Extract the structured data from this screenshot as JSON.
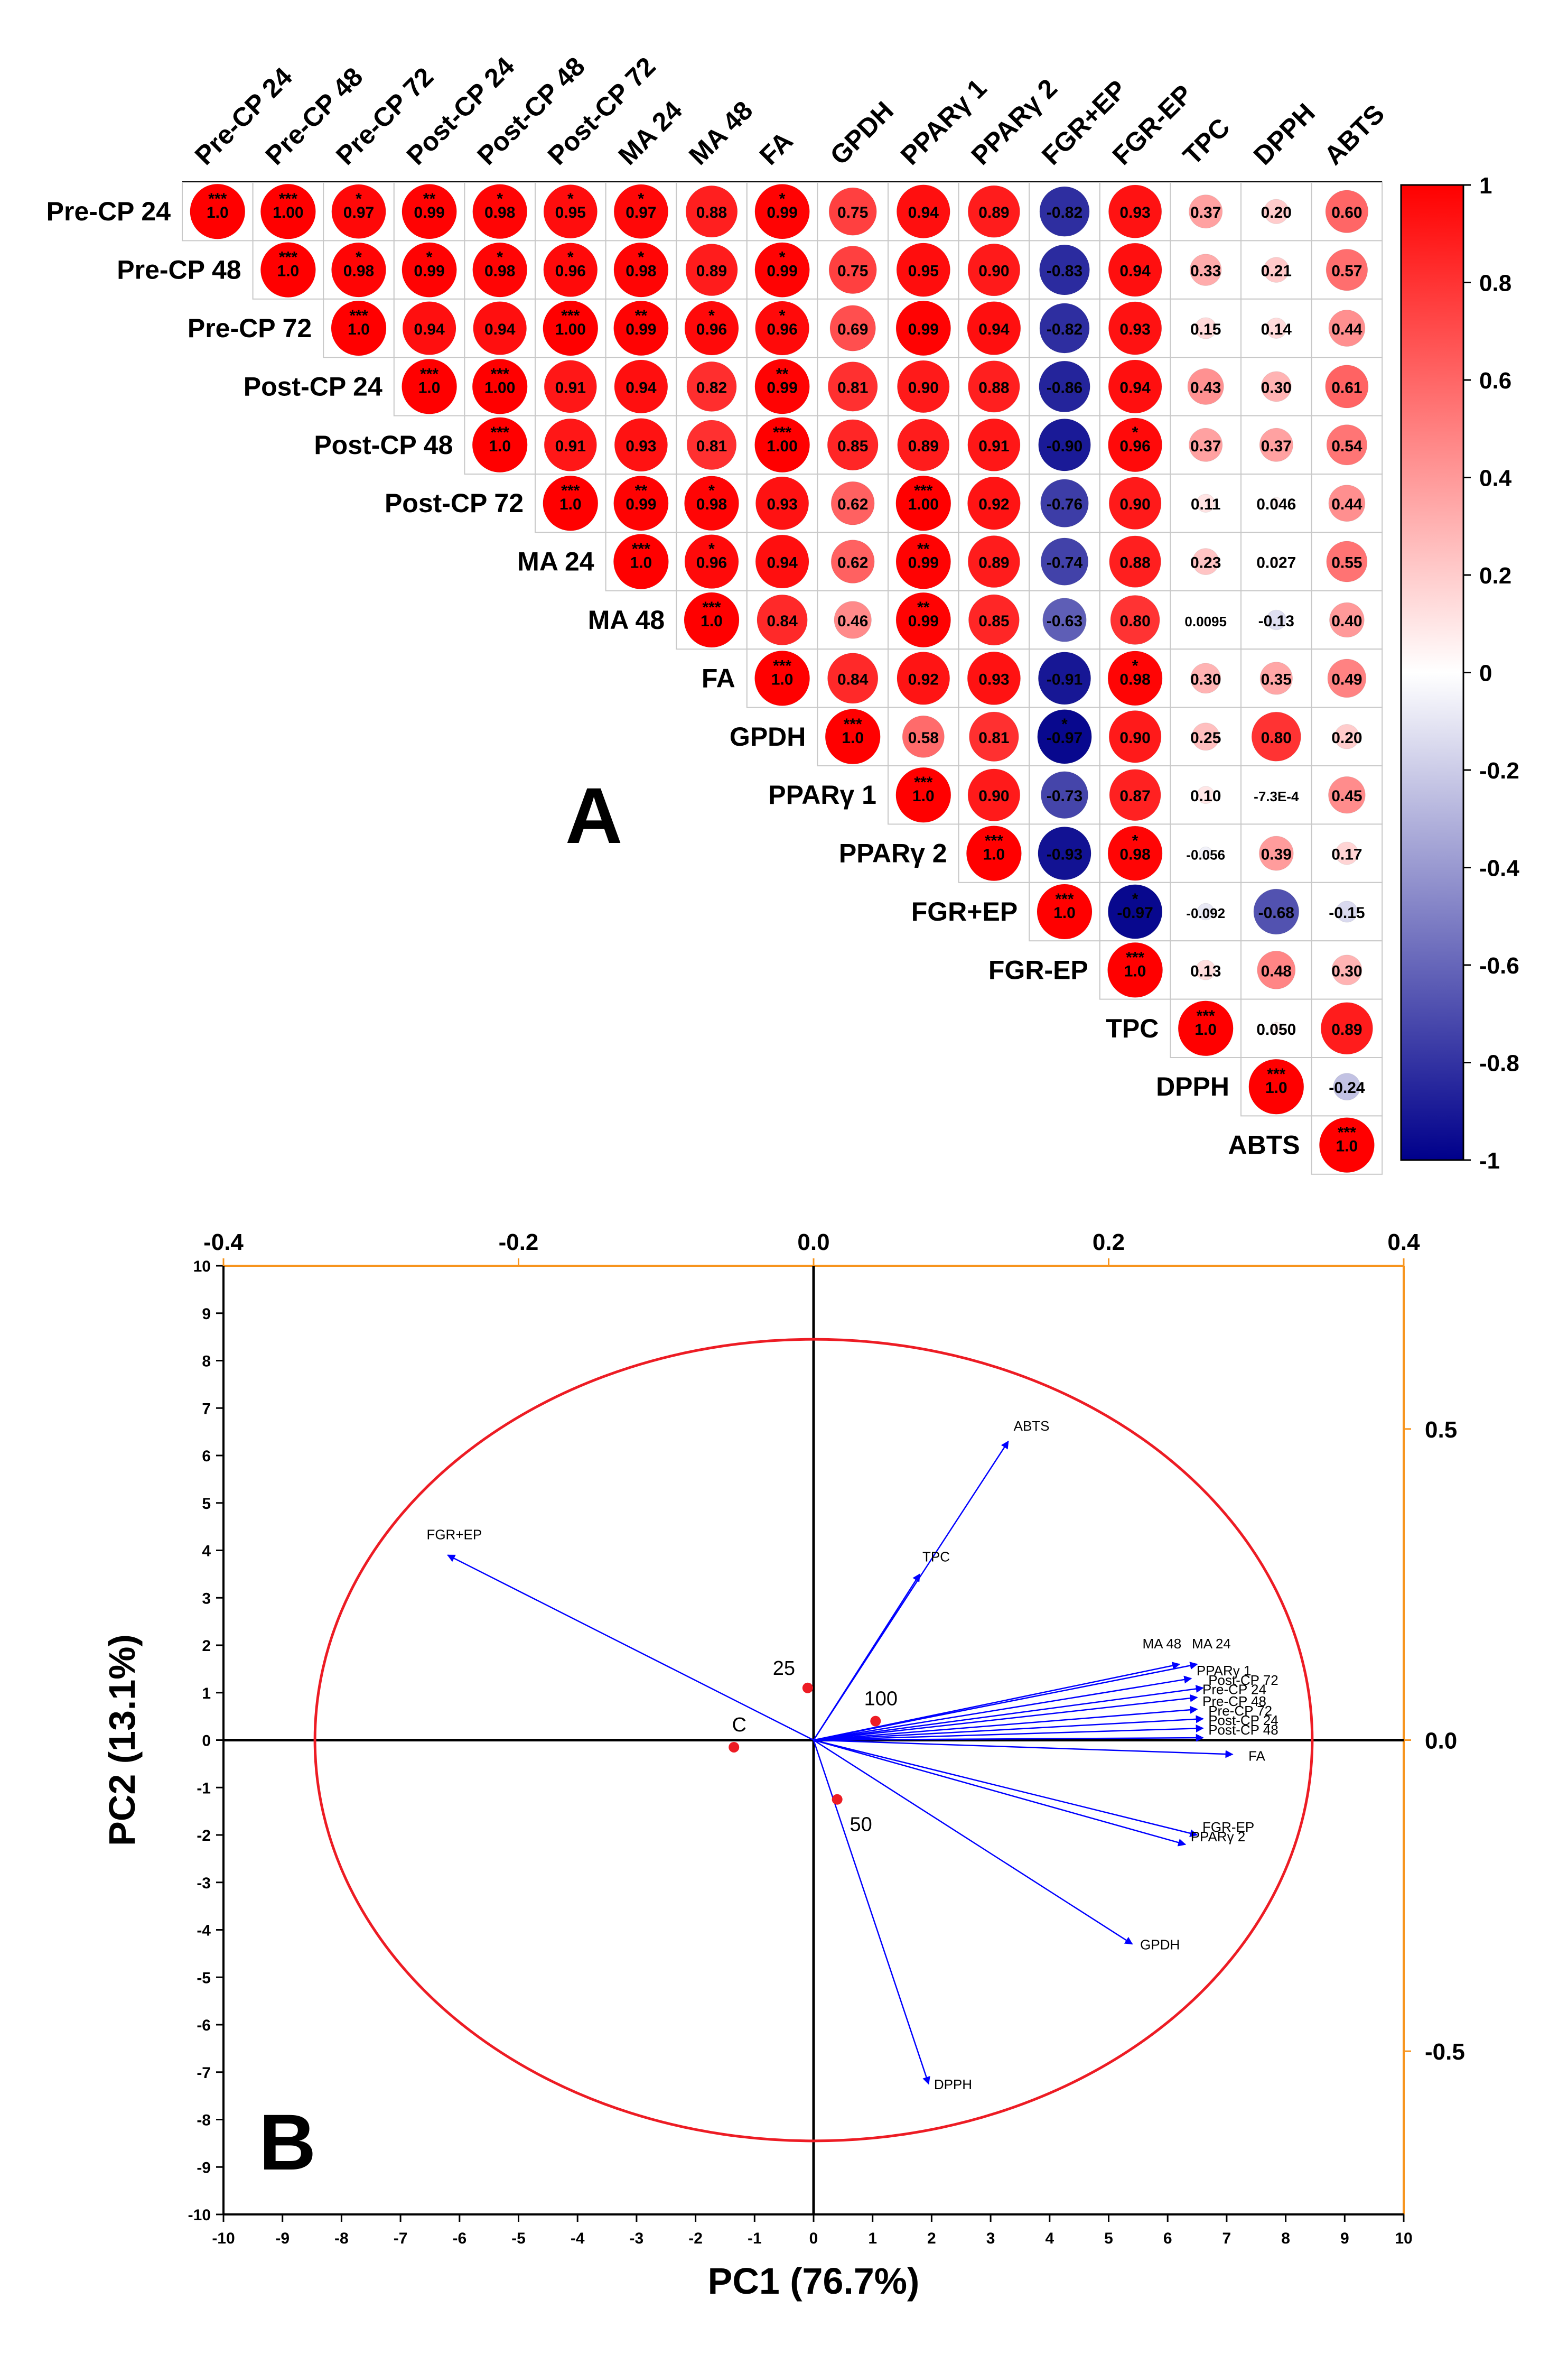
{
  "panel_a_label": "A",
  "panel_b_label": "B",
  "chart_data": [
    {
      "type": "heatmap",
      "variables": [
        "Pre-CP 24",
        "Pre-CP 48",
        "Pre-CP 72",
        "Post-CP 24",
        "Post-CP 48",
        "Post-CP 72",
        "MA 24",
        "MA 48",
        "FA",
        "GPDH",
        "PPARγ 1",
        "PPARγ 2",
        "FGR+EP",
        "FGR-EP",
        "TPC",
        "DPPH",
        "ABTS"
      ],
      "matrix_upper": [
        [
          "1.0",
          "1.00",
          "0.97",
          "0.99",
          "0.98",
          "0.95",
          "0.97",
          "0.88",
          "0.99",
          "0.75",
          "0.94",
          "0.89",
          "-0.82",
          "0.93",
          "0.37",
          "0.20",
          "0.60"
        ],
        [
          "1.0",
          "0.98",
          "0.99",
          "0.98",
          "0.96",
          "0.98",
          "0.89",
          "0.99",
          "0.75",
          "0.95",
          "0.90",
          "-0.83",
          "0.94",
          "0.33",
          "0.21",
          "0.57"
        ],
        [
          "1.0",
          "0.94",
          "0.94",
          "1.00",
          "0.99",
          "0.96",
          "0.96",
          "0.69",
          "0.99",
          "0.94",
          "-0.82",
          "0.93",
          "0.15",
          "0.14",
          "0.44"
        ],
        [
          "1.0",
          "1.00",
          "0.91",
          "0.94",
          "0.82",
          "0.99",
          "0.81",
          "0.90",
          "0.88",
          "-0.86",
          "0.94",
          "0.43",
          "0.30",
          "0.61"
        ],
        [
          "1.0",
          "0.91",
          "0.93",
          "0.81",
          "1.00",
          "0.85",
          "0.89",
          "0.91",
          "-0.90",
          "0.96",
          "0.37",
          "0.37",
          "0.54"
        ],
        [
          "1.0",
          "0.99",
          "0.98",
          "0.93",
          "0.62",
          "1.00",
          "0.92",
          "-0.76",
          "0.90",
          "0.11",
          "0.046",
          "0.44"
        ],
        [
          "1.0",
          "0.96",
          "0.94",
          "0.62",
          "0.99",
          "0.89",
          "-0.74",
          "0.88",
          "0.23",
          "0.027",
          "0.55"
        ],
        [
          "1.0",
          "0.84",
          "0.46",
          "0.99",
          "0.85",
          "-0.63",
          "0.80",
          "0.0095",
          "-0.13",
          "0.40"
        ],
        [
          "1.0",
          "0.84",
          "0.92",
          "0.93",
          "-0.91",
          "0.98",
          "0.30",
          "0.35",
          "0.49"
        ],
        [
          "1.0",
          "0.58",
          "0.81",
          "-0.97",
          "0.90",
          "0.25",
          "0.80",
          "0.20"
        ],
        [
          "1.0",
          "0.90",
          "-0.73",
          "0.87",
          "0.10",
          "-7.3E-4",
          "0.45"
        ],
        [
          "1.0",
          "-0.93",
          "0.98",
          "-0.056",
          "0.39",
          "0.17"
        ],
        [
          "1.0",
          "-0.97",
          "-0.092",
          "-0.68",
          "-0.15"
        ],
        [
          "1.0",
          "0.13",
          "0.48",
          "0.30"
        ],
        [
          "1.0",
          "0.050",
          "0.89"
        ],
        [
          "1.0",
          "-0.24"
        ],
        [
          "1.0"
        ]
      ],
      "stars_upper": [
        [
          "***",
          "***",
          "*",
          "**",
          "*",
          "*",
          "*",
          "",
          "*",
          "",
          "",
          "",
          "",
          "",
          "",
          "",
          ""
        ],
        [
          "***",
          "*",
          "*",
          "*",
          "*",
          "*",
          "",
          "*",
          "",
          "",
          "",
          "",
          "",
          "",
          "",
          ""
        ],
        [
          "***",
          "",
          "",
          "***",
          "**",
          "*",
          "*",
          "",
          "",
          "",
          "",
          "",
          "",
          "",
          ""
        ],
        [
          "***",
          "***",
          "",
          "",
          "",
          "**",
          "",
          "",
          "",
          "",
          "",
          "",
          "",
          "",
          ""
        ],
        [
          "***",
          "",
          "",
          "",
          "***",
          "",
          "",
          "",
          "",
          "*",
          "",
          "",
          ""
        ],
        [
          "***",
          "**",
          "*",
          "",
          "",
          "***",
          "",
          "",
          "",
          "",
          "",
          ""
        ],
        [
          "***",
          "*",
          "",
          "",
          "**",
          "",
          "",
          "",
          "",
          "",
          ""
        ],
        [
          "***",
          "",
          "",
          "**",
          "",
          "",
          "",
          "",
          "",
          ""
        ],
        [
          "***",
          "",
          "",
          "",
          "",
          "*",
          "",
          "",
          ""
        ],
        [
          "***",
          "",
          "",
          "*",
          "",
          "",
          "",
          ""
        ],
        [
          "***",
          "",
          "",
          "",
          "",
          "",
          ""
        ],
        [
          "***",
          "",
          "*",
          "",
          "",
          ""
        ],
        [
          "***",
          "*",
          "",
          "",
          ""
        ],
        [
          "***",
          "",
          "",
          ""
        ],
        [
          "***",
          "",
          ""
        ],
        [
          "***",
          ""
        ],
        [
          "***"
        ]
      ],
      "colorbar": {
        "min": -1,
        "max": 1,
        "ticks": [
          "1",
          "0.8",
          "0.6",
          "0.4",
          "0.2",
          "0",
          "-0.2",
          "-0.4",
          "-0.6",
          "-0.8",
          "-1"
        ],
        "color_low": "#00008b",
        "color_mid": "#ffffff",
        "color_high": "#ff0000"
      }
    },
    {
      "type": "scatter",
      "subtype": "biplot",
      "xlabel": "PC1 (76.7%)",
      "ylabel": "PC2 (13.1%)",
      "xlim": [
        -10,
        10
      ],
      "ylim": [
        -10,
        10
      ],
      "x_ticks": [
        "-10",
        "-9",
        "-8",
        "-7",
        "-6",
        "-5",
        "-4",
        "-3",
        "-2",
        "-1",
        "0",
        "1",
        "2",
        "3",
        "4",
        "5",
        "6",
        "7",
        "8",
        "9",
        "10"
      ],
      "y_ticks": [
        "10",
        "9",
        "8",
        "7",
        "6",
        "5",
        "4",
        "3",
        "2",
        "1",
        "0",
        "-1",
        "-2",
        "-3",
        "-4",
        "-5",
        "-6",
        "-7",
        "-8",
        "-9",
        "-10"
      ],
      "top_axis": {
        "lim": [
          -0.4,
          0.4
        ],
        "ticks": [
          "-0.4",
          "-0.2",
          "0.0",
          "0.2",
          "0.4"
        ]
      },
      "right_axis": {
        "lim": [
          -0.7623,
          0.7623
        ],
        "ticks": [
          "0.5",
          "0.0",
          "-0.5"
        ],
        "tick_values": [
          0.5,
          0.0,
          -0.5
        ],
        "color": "#f7941d"
      },
      "circle_radius": 8.45,
      "circle_color": "#ed1c24",
      "arrow_color": "#0000ff",
      "points": [
        {
          "label": "C",
          "x": -1.35,
          "y": -0.15
        },
        {
          "label": "25",
          "x": -0.1,
          "y": 1.1
        },
        {
          "label": "100",
          "x": 1.05,
          "y": 0.4
        },
        {
          "label": "50",
          "x": 0.4,
          "y": -1.25
        }
      ],
      "loadings": [
        {
          "label": "ABTS",
          "x": 3.3,
          "y": 6.3
        },
        {
          "label": "TPC",
          "x": 1.8,
          "y": 3.5
        },
        {
          "label": "FGR+EP",
          "x": -6.2,
          "y": 3.9
        },
        {
          "label": "MA 48",
          "x": 6.2,
          "y": 1.6
        },
        {
          "label": "MA 24",
          "x": 6.5,
          "y": 1.6
        },
        {
          "label": "PPARγ 1",
          "x": 6.4,
          "y": 1.3
        },
        {
          "label": "Post-CP 72",
          "x": 6.6,
          "y": 1.1
        },
        {
          "label": "Pre-CP 24",
          "x": 6.5,
          "y": 0.9
        },
        {
          "label": "Pre-CP 48",
          "x": 6.5,
          "y": 0.65
        },
        {
          "label": "Pre-CP 72",
          "x": 6.6,
          "y": 0.45
        },
        {
          "label": "Post-CP 24",
          "x": 6.6,
          "y": 0.25
        },
        {
          "label": "Post-CP 48",
          "x": 6.6,
          "y": 0.05
        },
        {
          "label": "FA",
          "x": 7.1,
          "y": -0.3
        },
        {
          "label": "FGR-EP",
          "x": 6.5,
          "y": -2.0
        },
        {
          "label": "PPARγ 2",
          "x": 6.3,
          "y": -2.2
        },
        {
          "label": "GPDH",
          "x": 5.4,
          "y": -4.3
        },
        {
          "label": "DPPH",
          "x": 1.95,
          "y": -7.25
        }
      ]
    }
  ]
}
